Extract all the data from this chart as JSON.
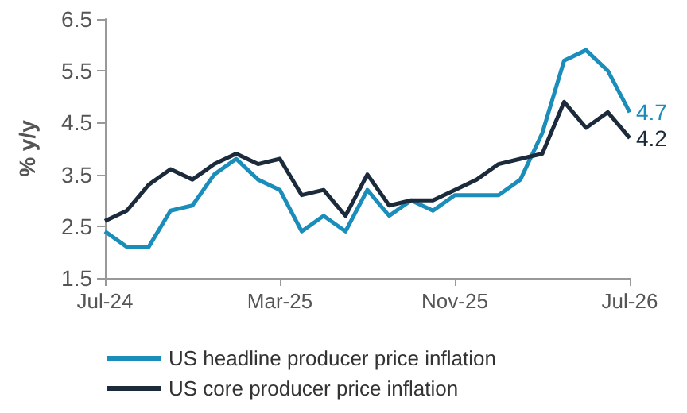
{
  "chart_data": {
    "type": "line",
    "ylabel": "% y/y",
    "categories": [
      "Jul-24",
      null,
      null,
      null,
      null,
      null,
      null,
      null,
      "Mar-25",
      null,
      null,
      null,
      null,
      null,
      null,
      null,
      "Nov-25",
      null,
      null,
      null,
      null,
      null,
      null,
      null,
      "Jul-26"
    ],
    "series": [
      {
        "name": "US headline producer price inflation",
        "color": "#1a8dbb",
        "values": [
          2.4,
          2.1,
          2.1,
          2.8,
          2.9,
          3.5,
          3.8,
          3.4,
          3.2,
          2.4,
          2.7,
          2.4,
          3.2,
          2.7,
          3.0,
          2.8,
          3.1,
          3.1,
          3.1,
          3.4,
          4.3,
          5.7,
          5.9,
          5.5,
          4.7
        ],
        "value_labels": [
          null,
          null,
          null,
          null,
          null,
          null,
          null,
          null,
          null,
          null,
          null,
          null,
          null,
          null,
          null,
          null,
          null,
          null,
          null,
          null,
          null,
          null,
          null,
          null,
          "4.7"
        ]
      },
      {
        "name": "US core producer price inflation",
        "color": "#1c2b3c",
        "values": [
          2.6,
          2.8,
          3.3,
          3.6,
          3.4,
          3.7,
          3.9,
          3.7,
          3.8,
          3.1,
          3.2,
          2.7,
          3.5,
          2.9,
          3.0,
          3.0,
          3.2,
          3.4,
          3.7,
          3.8,
          3.9,
          4.9,
          4.4,
          4.7,
          4.2
        ],
        "value_labels": [
          null,
          null,
          null,
          null,
          null,
          null,
          null,
          null,
          null,
          null,
          null,
          null,
          null,
          null,
          null,
          null,
          null,
          null,
          null,
          null,
          null,
          null,
          null,
          null,
          "4.2"
        ]
      }
    ],
    "ylim": [
      1.5,
      6.5
    ],
    "yticks": [
      1.5,
      2.5,
      3.5,
      4.5,
      5.5,
      6.5
    ],
    "grid": false,
    "legend": "bottom",
    "marker": "none",
    "line_style": "solid"
  }
}
